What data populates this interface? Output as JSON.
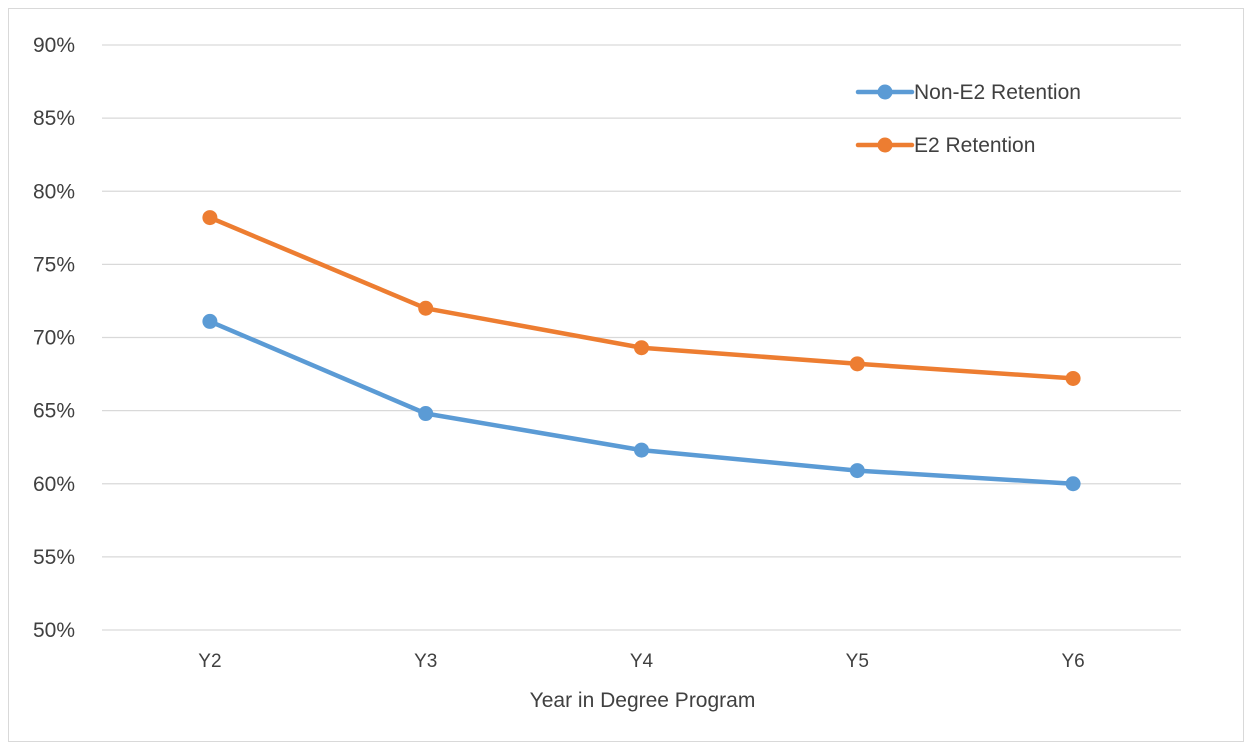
{
  "chart_data": {
    "type": "line",
    "title": "",
    "xlabel": "Year in Degree Program",
    "ylabel": "",
    "categories": [
      "Y2",
      "Y3",
      "Y4",
      "Y5",
      "Y6"
    ],
    "ylim": [
      0.5,
      0.9
    ],
    "ytick_step": 0.05,
    "yticks": [
      "50%",
      "55%",
      "60%",
      "65%",
      "70%",
      "75%",
      "80%",
      "85%",
      "90%"
    ],
    "grid": true,
    "legend_position": "top-right",
    "series": [
      {
        "name": "Non-E2 Retention",
        "color": "#5b9bd5",
        "values": [
          0.711,
          0.648,
          0.623,
          0.609,
          0.6
        ]
      },
      {
        "name": "E2 Retention",
        "color": "#ed7d31",
        "values": [
          0.782,
          0.72,
          0.693,
          0.682,
          0.672
        ]
      }
    ]
  }
}
